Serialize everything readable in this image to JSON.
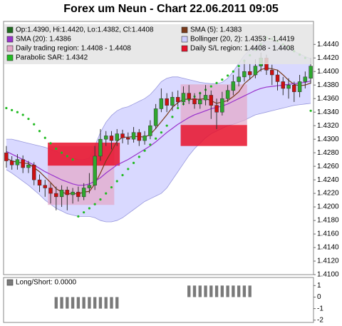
{
  "chart_data": [
    {
      "type": "candlestick",
      "title": "Forex um Neun - Chart 22.06.2011 09:05",
      "name": "Op:1.4390, Hi:1.4420, Lo:1.4382, Cl:1.4408",
      "color": "#1f6b1f",
      "up_color": "#2ea82e",
      "down_color": "#cc1010",
      "open": [
        1.428,
        1.4268,
        1.4262,
        1.427,
        1.4258,
        1.4262,
        1.424,
        1.4232,
        1.4228,
        1.422,
        1.4215,
        1.4225,
        1.4218,
        1.4222,
        1.4215,
        1.4228,
        1.4232,
        1.4275,
        1.43,
        1.4305,
        1.4298,
        1.4308,
        1.4302,
        1.43,
        1.431,
        1.4298,
        1.4305,
        1.432,
        1.4345,
        1.436,
        1.435,
        1.4362,
        1.4355,
        1.4368,
        1.436,
        1.4352,
        1.4358,
        1.4365,
        1.435,
        1.434,
        1.436,
        1.4372,
        1.4385,
        1.4392,
        1.44,
        1.4395,
        1.4408,
        1.442,
        1.4402,
        1.4395,
        1.4385,
        1.4375,
        1.438,
        1.437,
        1.4385,
        1.439
      ],
      "high": [
        1.429,
        1.4275,
        1.4278,
        1.4276,
        1.4268,
        1.4266,
        1.4248,
        1.424,
        1.4235,
        1.423,
        1.4232,
        1.423,
        1.4228,
        1.423,
        1.4235,
        1.425,
        1.429,
        1.4315,
        1.4312,
        1.4312,
        1.4315,
        1.4314,
        1.431,
        1.4318,
        1.4315,
        1.4312,
        1.4328,
        1.4352,
        1.4375,
        1.4368,
        1.437,
        1.4372,
        1.4378,
        1.438,
        1.4368,
        1.437,
        1.438,
        1.4372,
        1.436,
        1.437,
        1.438,
        1.4395,
        1.4405,
        1.4415,
        1.4412,
        1.4418,
        1.4428,
        1.4425,
        1.441,
        1.4402,
        1.4392,
        1.439,
        1.4385,
        1.4395,
        1.44,
        1.442
      ],
      "low": [
        1.4258,
        1.4255,
        1.4255,
        1.425,
        1.425,
        1.4232,
        1.4222,
        1.4215,
        1.4205,
        1.4195,
        1.42,
        1.4195,
        1.4205,
        1.4208,
        1.421,
        1.422,
        1.4225,
        1.4268,
        1.429,
        1.4285,
        1.429,
        1.4294,
        1.4292,
        1.4295,
        1.429,
        1.4292,
        1.43,
        1.4315,
        1.434,
        1.434,
        1.4342,
        1.4348,
        1.435,
        1.4352,
        1.4345,
        1.4345,
        1.435,
        1.433,
        1.4315,
        1.4335,
        1.4355,
        1.4365,
        1.4378,
        1.4385,
        1.4388,
        1.439,
        1.44,
        1.4395,
        1.438,
        1.4372,
        1.4365,
        1.436,
        1.4355,
        1.4362,
        1.4375,
        1.4382
      ],
      "close": [
        1.4268,
        1.4262,
        1.427,
        1.4258,
        1.4262,
        1.424,
        1.4232,
        1.4228,
        1.422,
        1.4215,
        1.4225,
        1.4218,
        1.4222,
        1.4215,
        1.4228,
        1.4232,
        1.4275,
        1.43,
        1.4305,
        1.4298,
        1.4308,
        1.4302,
        1.43,
        1.431,
        1.4298,
        1.4305,
        1.432,
        1.4345,
        1.436,
        1.435,
        1.4362,
        1.4355,
        1.4368,
        1.436,
        1.4352,
        1.4358,
        1.4365,
        1.435,
        1.434,
        1.436,
        1.4372,
        1.4385,
        1.4392,
        1.44,
        1.4395,
        1.4408,
        1.442,
        1.4402,
        1.4395,
        1.4385,
        1.4375,
        1.438,
        1.437,
        1.4385,
        1.4392,
        1.4408
      ],
      "band": {
        "name": "Bollinger (20, 2): 1.4353 - 1.4419",
        "color": "#ccccff",
        "edge_color": "#9999dd",
        "upper": [
          1.43,
          1.43,
          1.4298,
          1.4296,
          1.4294,
          1.4292,
          1.429,
          1.4288,
          1.4285,
          1.4282,
          1.4278,
          1.4274,
          1.4272,
          1.427,
          1.427,
          1.4272,
          1.429,
          1.431,
          1.4325,
          1.4335,
          1.4342,
          1.4346,
          1.4348,
          1.4352,
          1.4356,
          1.436,
          1.4366,
          1.4375,
          1.4385,
          1.439,
          1.4392,
          1.4392,
          1.439,
          1.4388,
          1.4386,
          1.4384,
          1.4383,
          1.4382,
          1.4382,
          1.4384,
          1.439,
          1.44,
          1.4412,
          1.4424,
          1.4432,
          1.4438,
          1.4442,
          1.4444,
          1.4444,
          1.4442,
          1.4438,
          1.4434,
          1.443,
          1.4426,
          1.4422,
          1.4419
        ],
        "lower": [
          1.4255,
          1.425,
          1.4244,
          1.4238,
          1.4232,
          1.4225,
          1.4218,
          1.421,
          1.4204,
          1.4198,
          1.4194,
          1.419,
          1.4188,
          1.4186,
          1.4186,
          1.4186,
          1.4184,
          1.418,
          1.4178,
          1.4178,
          1.418,
          1.4184,
          1.419,
          1.4196,
          1.4202,
          1.4208,
          1.4212,
          1.4216,
          1.422,
          1.4228,
          1.424,
          1.4252,
          1.4264,
          1.4276,
          1.4286,
          1.4294,
          1.4302,
          1.4308,
          1.4312,
          1.4316,
          1.432,
          1.4322,
          1.4325,
          1.4328,
          1.4332,
          1.4336,
          1.4338,
          1.434,
          1.4342,
          1.4344,
          1.4346,
          1.4348,
          1.435,
          1.4351,
          1.4352,
          1.4353
        ]
      },
      "series": [
        {
          "name": "SMA (5): 1.4383",
          "color": "#7a3a1a",
          "style": "line",
          "values": [
            1.4272,
            1.4268,
            1.4266,
            1.4265,
            1.4264,
            1.4258,
            1.4252,
            1.4244,
            1.4236,
            1.4227,
            1.4222,
            1.4219,
            1.422,
            1.4219,
            1.4222,
            1.4223,
            1.4234,
            1.425,
            1.4268,
            1.4282,
            1.4297,
            1.4303,
            1.4303,
            1.4304,
            1.4304,
            1.4303,
            1.4307,
            1.4316,
            1.4326,
            1.4336,
            1.4347,
            1.4354,
            1.4359,
            1.4359,
            1.4359,
            1.4359,
            1.436,
            1.4357,
            1.4353,
            1.4355,
            1.4357,
            1.4363,
            1.437,
            1.4382,
            1.4389,
            1.4396,
            1.4403,
            1.4405,
            1.4404,
            1.4402,
            1.4395,
            1.4387,
            1.4381,
            1.4379,
            1.438,
            1.4383
          ]
        },
        {
          "name": "SMA (20): 1.4386",
          "color": "#9933cc",
          "style": "line",
          "values": [
            1.4282,
            1.4278,
            1.4274,
            1.427,
            1.4266,
            1.4262,
            1.4257,
            1.4252,
            1.4248,
            1.4244,
            1.424,
            1.4237,
            1.4234,
            1.4232,
            1.4232,
            1.4234,
            1.4238,
            1.4243,
            1.425,
            1.4256,
            1.4262,
            1.4266,
            1.427,
            1.4275,
            1.428,
            1.4285,
            1.429,
            1.4296,
            1.4303,
            1.431,
            1.4316,
            1.4322,
            1.4327,
            1.4332,
            1.4336,
            1.4339,
            1.4342,
            1.4345,
            1.4347,
            1.4349,
            1.4352,
            1.4356,
            1.436,
            1.4364,
            1.4368,
            1.4372,
            1.4375,
            1.4377,
            1.4378,
            1.4379,
            1.438,
            1.4381,
            1.4382,
            1.4383,
            1.4384,
            1.4386
          ]
        },
        {
          "name": "Parabolic SAR: 1.4342",
          "color": "#22bb22",
          "style": "dots",
          "values": [
            1.4346,
            1.4343,
            1.434,
            1.4336,
            1.433,
            1.4322,
            1.4312,
            1.4302,
            1.4294,
            1.4286,
            1.428,
            1.4275,
            1.427,
            1.4186,
            1.4192,
            1.4198,
            1.4204,
            1.4211,
            1.422,
            1.4229,
            1.4238,
            1.4247,
            1.4256,
            1.4265,
            1.4274,
            1.4283,
            1.4292,
            1.4301,
            1.431,
            1.432,
            1.4333,
            1.4346,
            1.4352,
            1.4358,
            1.4363,
            1.4368,
            1.4373,
            1.4378,
            1.4383,
            1.4388,
            1.4394,
            1.44,
            1.4408,
            1.4416,
            1.4424,
            1.4432,
            1.444,
            1.445,
            1.4448,
            1.4445,
            1.444,
            1.4435,
            1.443,
            1.4425,
            1.442,
            1.4342
          ]
        }
      ],
      "regions": [
        {
          "name": "Daily trading region: 1.4408 - 1.4408",
          "color": "#e4a6c8",
          "opacity": 0.7,
          "spans": [
            {
              "from": 8,
              "to": 19,
              "low": 1.4203,
              "high": 1.429
            },
            {
              "from": 32,
              "to": 43,
              "low": 1.4321,
              "high": 1.4381
            }
          ]
        },
        {
          "name": "Daily S/L region: 1.4408 - 1.4408",
          "color": "#e8102a",
          "opacity": 0.85,
          "spans": [
            {
              "from": 8,
              "to": 20,
              "low": 1.4261,
              "high": 1.4295
            },
            {
              "from": 32,
              "to": 43,
              "low": 1.429,
              "high": 1.4321
            }
          ]
        }
      ],
      "ylim": [
        1.41,
        1.4474
      ],
      "yticks": [
        {
          "value": 1.41,
          "label": "1.4100"
        },
        {
          "value": 1.412,
          "label": "1.4120"
        },
        {
          "value": 1.414,
          "label": "1.4140"
        },
        {
          "value": 1.416,
          "label": "1.4160"
        },
        {
          "value": 1.418,
          "label": "1.4180"
        },
        {
          "value": 1.42,
          "label": "1.4200"
        },
        {
          "value": 1.422,
          "label": "1.4220"
        },
        {
          "value": 1.424,
          "label": "1.4240"
        },
        {
          "value": 1.426,
          "label": "1.4260"
        },
        {
          "value": 1.428,
          "label": "1.4280"
        },
        {
          "value": 1.43,
          "label": "1.4300"
        },
        {
          "value": 1.432,
          "label": "1.4320"
        },
        {
          "value": 1.434,
          "label": "1.4340"
        },
        {
          "value": 1.436,
          "label": "1.4360"
        },
        {
          "value": 1.438,
          "label": "1.4380"
        },
        {
          "value": 1.44,
          "label": "1.4400"
        },
        {
          "value": 1.442,
          "label": "1.4420"
        },
        {
          "value": 1.444,
          "label": "1.4440"
        }
      ],
      "grid": false
    },
    {
      "type": "bar",
      "title": "Long/Short: 0.0000",
      "color": "#7a7a7a",
      "values": [
        0,
        0,
        0,
        0,
        0,
        0,
        0,
        0,
        0,
        -1,
        -1,
        -1,
        -1,
        -1,
        -1,
        -1,
        -1,
        -1,
        -1,
        -1,
        -1,
        0,
        0,
        0,
        0,
        0,
        0,
        0,
        0,
        0,
        0,
        0,
        0,
        1,
        1,
        1,
        1,
        1,
        1,
        1,
        1,
        1,
        1,
        1,
        1,
        0,
        0,
        0,
        0,
        0,
        0,
        0,
        0,
        0,
        0,
        0
      ],
      "ylim": [
        -2.2,
        1.7
      ],
      "yticks": [
        1,
        0,
        -1,
        -2
      ],
      "grid": false
    }
  ]
}
